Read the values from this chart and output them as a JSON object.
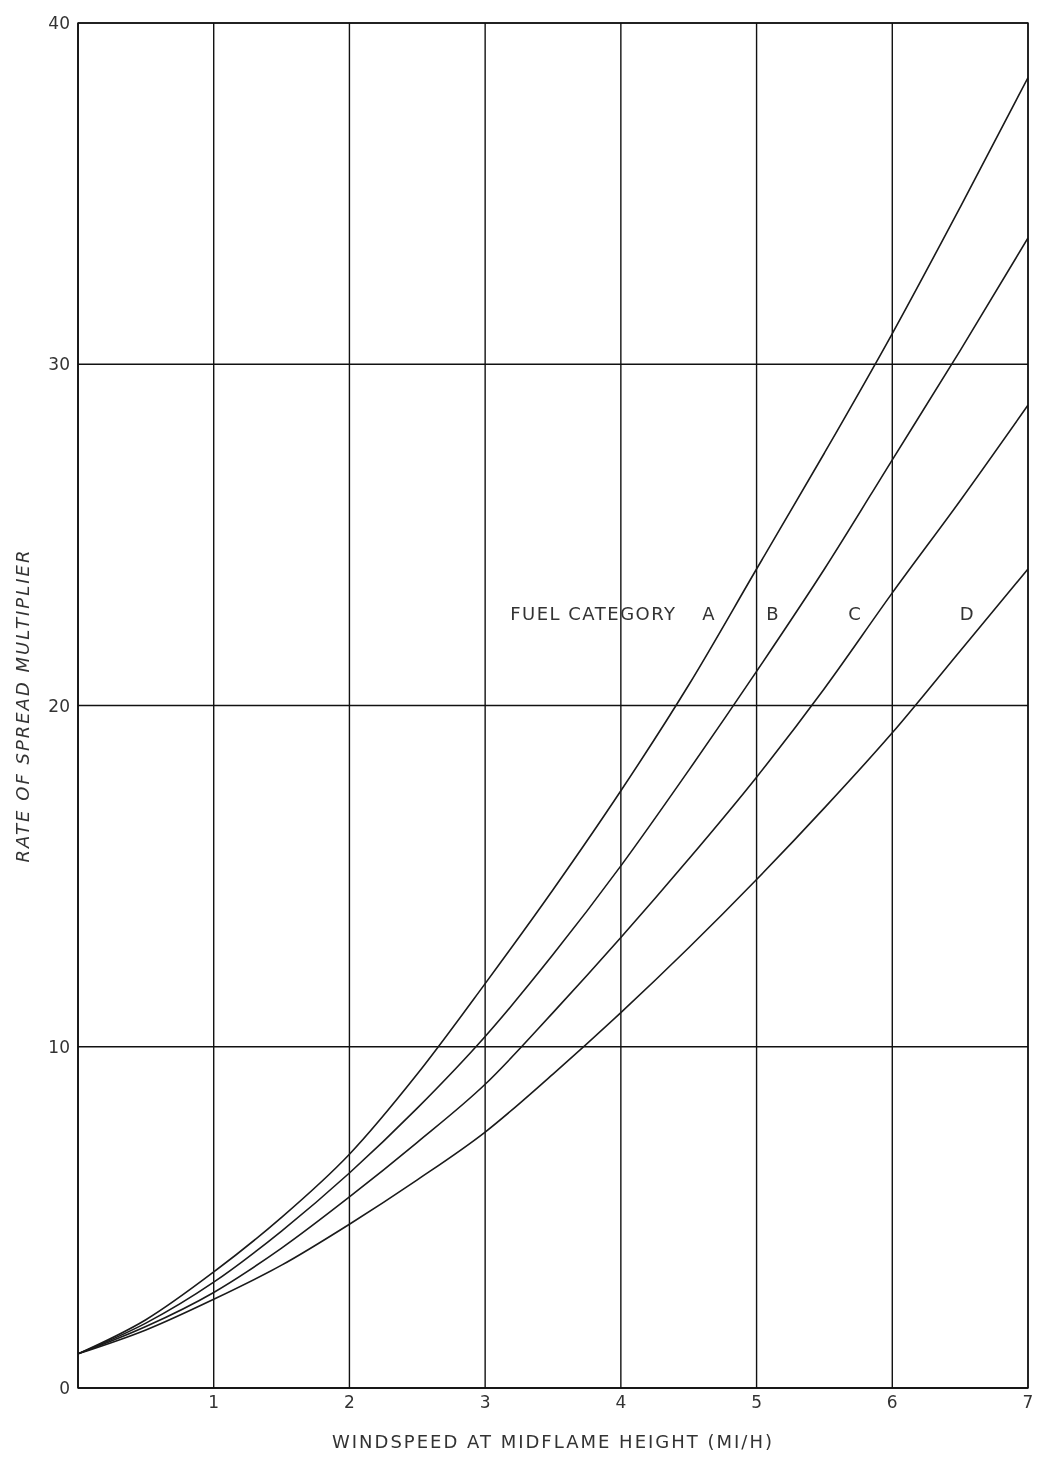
{
  "chart_data": {
    "type": "line",
    "xlabel": "WINDSPEED AT MIDFLAME HEIGHT (MI/H)",
    "ylabel": "RATE OF SPREAD MULTIPLIER",
    "legend_title": "FUEL CATEGORY",
    "x": [
      0,
      0.5,
      1,
      1.5,
      2,
      2.5,
      3,
      3.5,
      4,
      4.5,
      5,
      5.5,
      6,
      6.5,
      7
    ],
    "series": [
      {
        "name": "A",
        "color": "#1a1a1a",
        "values": [
          1,
          2.0,
          3.4,
          5.0,
          6.85,
          9.2,
          11.85,
          14.6,
          17.5,
          20.6,
          24.0,
          27.4,
          30.9,
          34.6,
          38.4
        ]
      },
      {
        "name": "B",
        "color": "#1a1a1a",
        "values": [
          1,
          1.9,
          3.1,
          4.6,
          6.3,
          8.2,
          10.3,
          12.7,
          15.3,
          18.1,
          21.0,
          24.0,
          27.2,
          30.4,
          33.7
        ]
      },
      {
        "name": "C",
        "color": "#1a1a1a",
        "values": [
          1,
          1.8,
          2.8,
          4.1,
          5.6,
          7.2,
          8.9,
          11.0,
          13.2,
          15.5,
          17.9,
          20.5,
          23.3,
          26.0,
          28.8
        ]
      },
      {
        "name": "D",
        "color": "#1a1a1a",
        "values": [
          1,
          1.7,
          2.6,
          3.6,
          4.8,
          6.1,
          7.5,
          9.2,
          11.0,
          12.9,
          14.9,
          17.0,
          19.2,
          21.6,
          24.0
        ]
      }
    ],
    "xlim": [
      0,
      7
    ],
    "ylim": [
      0,
      40
    ],
    "xticks": [
      {
        "value": 0,
        "label": null
      },
      1,
      2,
      3,
      4,
      5,
      6,
      7
    ],
    "yticks": [
      0,
      10,
      20,
      30,
      40
    ],
    "grid": true,
    "marker": "none",
    "line_style": "solid"
  }
}
